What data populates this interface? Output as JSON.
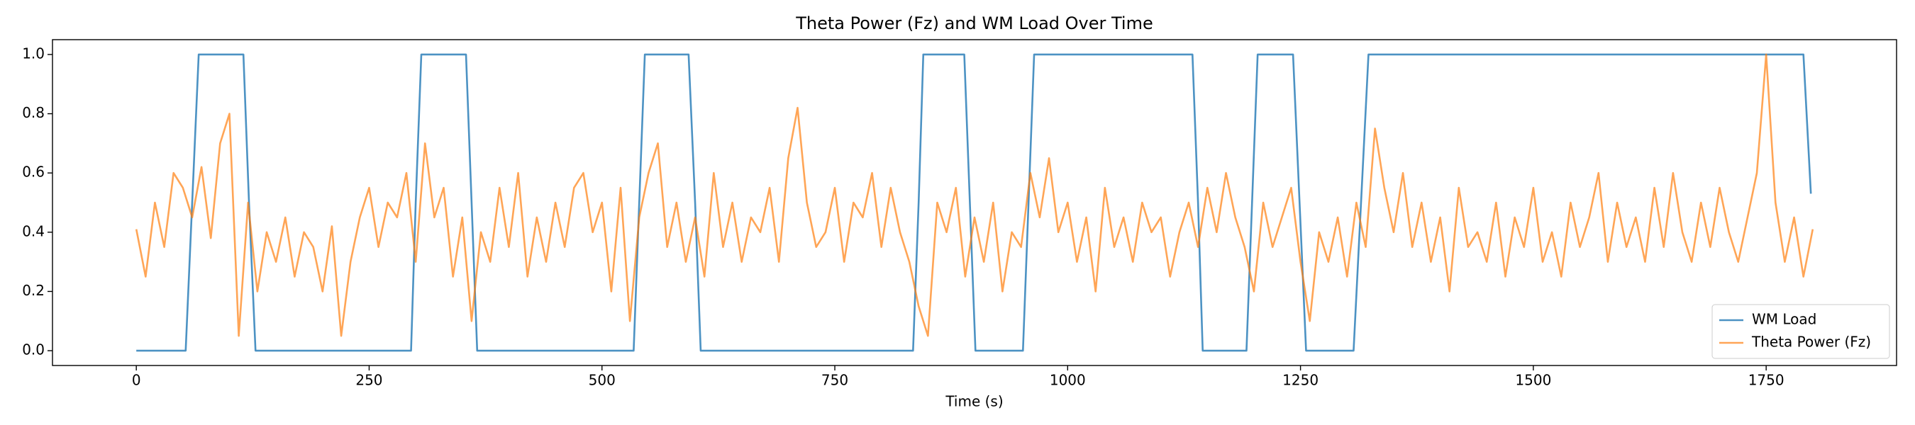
{
  "chart_data": {
    "type": "line",
    "title": "Theta Power (Fz) and WM Load Over Time",
    "x_label": "Time (s)",
    "xlim": [
      -90,
      1890
    ],
    "ylim": [
      -0.05,
      1.05
    ],
    "xticks": [
      0,
      250,
      500,
      750,
      1000,
      1250,
      1500,
      1750
    ],
    "yticks": [
      {
        "value": 0,
        "label": "0.0"
      },
      0.2,
      0.4,
      0.6,
      0.8,
      {
        "value": 1,
        "label": "1.0"
      }
    ],
    "legend": "lower right",
    "grid": false,
    "series": [
      {
        "name": "WM Load",
        "color": "#1f77b4",
        "x": [
          0,
          53,
          60,
          67,
          115,
          121,
          128,
          295,
          300,
          306,
          354,
          360,
          366,
          534,
          540,
          546,
          593,
          600,
          606,
          834,
          840,
          845,
          889,
          895,
          901,
          952,
          958,
          964,
          1134,
          1140,
          1145,
          1192,
          1198,
          1204,
          1242,
          1249,
          1256,
          1307,
          1315,
          1323,
          1790,
          1798
        ],
        "values": [
          0,
          0,
          0.5,
          1,
          1,
          0.5,
          0,
          0,
          0.5,
          1,
          1,
          0.5,
          0,
          0,
          0.5,
          1,
          1,
          0.5,
          0,
          0,
          0.5,
          1,
          1,
          0.5,
          0,
          0,
          0.5,
          1,
          1,
          0.5,
          0,
          0,
          0.5,
          1,
          1,
          0.5,
          0,
          0,
          0.5,
          1,
          1,
          0.53
        ]
      },
      {
        "name": "Theta Power (Fz)",
        "color": "#ff7f0e",
        "x": [
          0,
          10,
          20,
          30,
          40,
          50,
          60,
          70,
          80,
          90,
          100,
          110,
          120,
          130,
          140,
          150,
          160,
          170,
          180,
          190,
          200,
          210,
          220,
          230,
          240,
          250,
          260,
          270,
          280,
          290,
          300,
          310,
          320,
          330,
          340,
          350,
          360,
          370,
          380,
          390,
          400,
          410,
          420,
          430,
          440,
          450,
          460,
          470,
          480,
          490,
          500,
          510,
          520,
          530,
          540,
          550,
          560,
          570,
          580,
          590,
          600,
          610,
          620,
          630,
          640,
          650,
          660,
          670,
          680,
          690,
          700,
          710,
          720,
          730,
          740,
          750,
          760,
          770,
          780,
          790,
          800,
          810,
          820,
          830,
          840,
          850,
          860,
          870,
          880,
          890,
          900,
          910,
          920,
          930,
          940,
          950,
          960,
          970,
          980,
          990,
          1000,
          1010,
          1020,
          1030,
          1040,
          1050,
          1060,
          1070,
          1080,
          1090,
          1100,
          1110,
          1120,
          1130,
          1140,
          1150,
          1160,
          1170,
          1180,
          1190,
          1200,
          1210,
          1220,
          1230,
          1240,
          1250,
          1260,
          1270,
          1280,
          1290,
          1300,
          1310,
          1320,
          1330,
          1340,
          1350,
          1360,
          1370,
          1380,
          1390,
          1400,
          1410,
          1420,
          1430,
          1440,
          1450,
          1460,
          1470,
          1480,
          1490,
          1500,
          1510,
          1520,
          1530,
          1540,
          1550,
          1560,
          1570,
          1580,
          1590,
          1600,
          1610,
          1620,
          1630,
          1640,
          1650,
          1660,
          1670,
          1680,
          1690,
          1700,
          1710,
          1720,
          1730,
          1740,
          1750,
          1760,
          1770,
          1780,
          1790,
          1800
        ],
        "values": [
          0.41,
          0.25,
          0.5,
          0.35,
          0.6,
          0.55,
          0.45,
          0.62,
          0.38,
          0.7,
          0.8,
          0.05,
          0.5,
          0.2,
          0.4,
          0.3,
          0.45,
          0.25,
          0.4,
          0.35,
          0.2,
          0.42,
          0.05,
          0.3,
          0.45,
          0.55,
          0.35,
          0.5,
          0.45,
          0.6,
          0.3,
          0.7,
          0.45,
          0.55,
          0.25,
          0.45,
          0.1,
          0.4,
          0.3,
          0.55,
          0.35,
          0.6,
          0.25,
          0.45,
          0.3,
          0.5,
          0.35,
          0.55,
          0.6,
          0.4,
          0.5,
          0.2,
          0.55,
          0.1,
          0.45,
          0.6,
          0.7,
          0.35,
          0.5,
          0.3,
          0.45,
          0.25,
          0.6,
          0.35,
          0.5,
          0.3,
          0.45,
          0.4,
          0.55,
          0.3,
          0.65,
          0.82,
          0.5,
          0.35,
          0.4,
          0.55,
          0.3,
          0.5,
          0.45,
          0.6,
          0.35,
          0.55,
          0.4,
          0.3,
          0.15,
          0.05,
          0.5,
          0.4,
          0.55,
          0.25,
          0.45,
          0.3,
          0.5,
          0.2,
          0.4,
          0.35,
          0.6,
          0.45,
          0.65,
          0.4,
          0.5,
          0.3,
          0.45,
          0.2,
          0.55,
          0.35,
          0.45,
          0.3,
          0.5,
          0.4,
          0.45,
          0.25,
          0.4,
          0.5,
          0.35,
          0.55,
          0.4,
          0.6,
          0.45,
          0.35,
          0.2,
          0.5,
          0.35,
          0.45,
          0.55,
          0.3,
          0.1,
          0.4,
          0.3,
          0.45,
          0.25,
          0.5,
          0.35,
          0.75,
          0.55,
          0.4,
          0.6,
          0.35,
          0.5,
          0.3,
          0.45,
          0.2,
          0.55,
          0.35,
          0.4,
          0.3,
          0.5,
          0.25,
          0.45,
          0.35,
          0.55,
          0.3,
          0.4,
          0.25,
          0.5,
          0.35,
          0.45,
          0.6,
          0.3,
          0.5,
          0.35,
          0.45,
          0.3,
          0.55,
          0.35,
          0.6,
          0.4,
          0.3,
          0.5,
          0.35,
          0.55,
          0.4,
          0.3,
          0.45,
          0.6,
          1.0,
          0.5,
          0.3,
          0.45,
          0.25,
          0.41
        ]
      }
    ]
  }
}
